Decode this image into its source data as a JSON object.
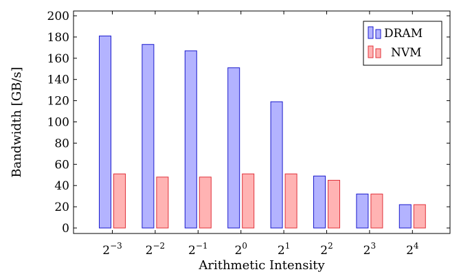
{
  "chart_data": {
    "type": "bar",
    "title": "",
    "xlabel": "Arithmetic Intensity",
    "ylabel": "Bandwidth [GB/s]",
    "categories": [
      {
        "base": "2",
        "exp": "−3"
      },
      {
        "base": "2",
        "exp": "−2"
      },
      {
        "base": "2",
        "exp": "−1"
      },
      {
        "base": "2",
        "exp": "0"
      },
      {
        "base": "2",
        "exp": "1"
      },
      {
        "base": "2",
        "exp": "2"
      },
      {
        "base": "2",
        "exp": "3"
      },
      {
        "base": "2",
        "exp": "4"
      }
    ],
    "series": [
      {
        "name": "DRAM",
        "values": [
          181,
          173,
          167,
          151,
          119,
          49,
          32,
          22
        ],
        "fill": "#b3b3ff",
        "stroke": "#1a1acc"
      },
      {
        "name": "NVM",
        "values": [
          51,
          48,
          48,
          51,
          51,
          45,
          32,
          22
        ],
        "fill": "#ffb3b3",
        "stroke": "#e0303a"
      }
    ],
    "ylim": [
      0,
      200
    ],
    "yticks": [
      0,
      20,
      40,
      60,
      80,
      100,
      120,
      140,
      160,
      180,
      200
    ],
    "grid": false,
    "legend_position": "top-right"
  }
}
